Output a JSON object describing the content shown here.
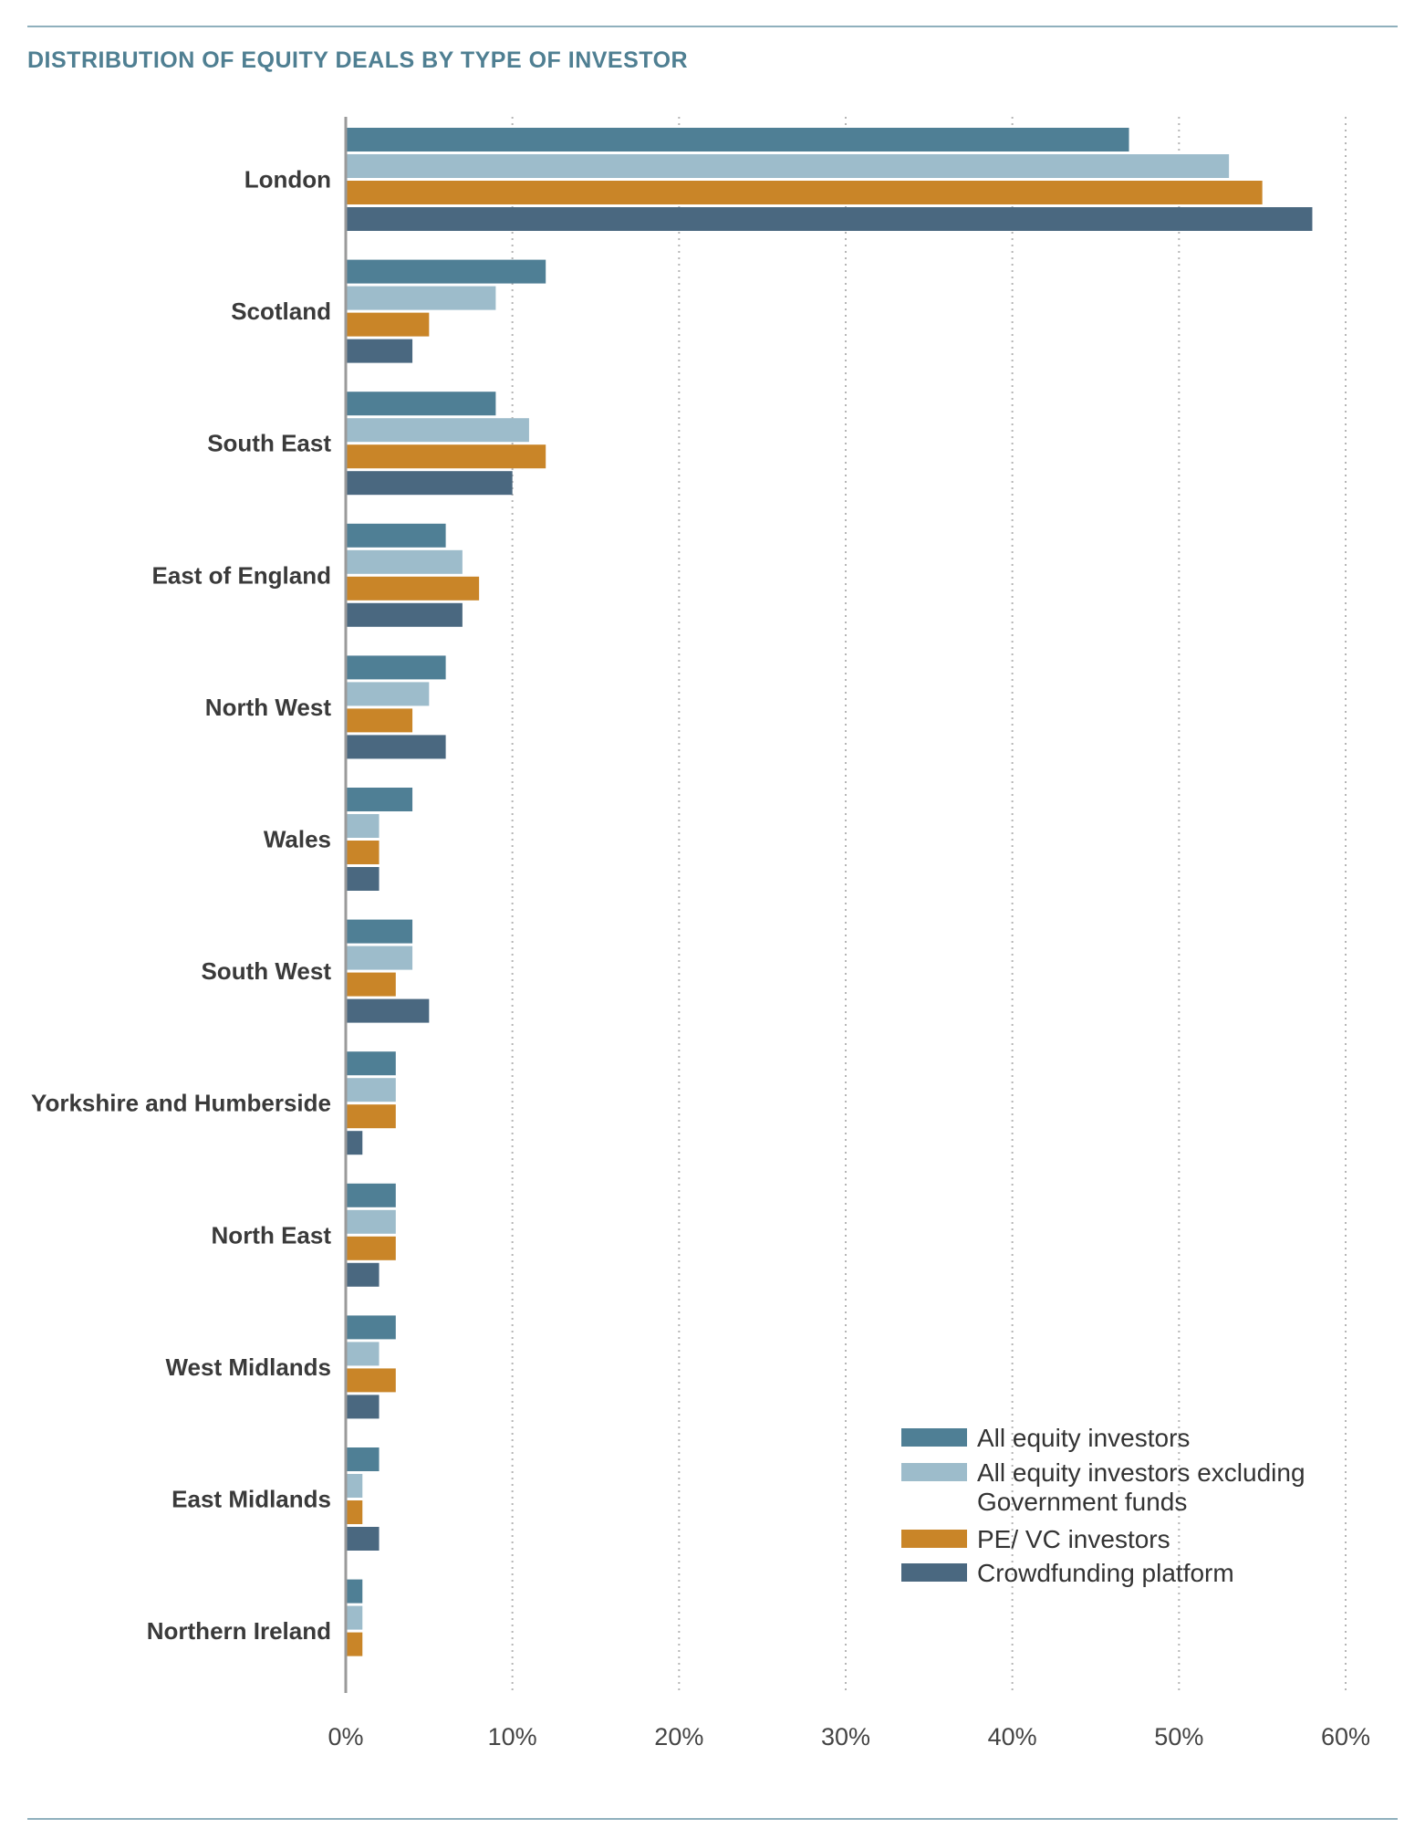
{
  "page": {
    "title": "DISTRIBUTION OF EQUITY DEALS BY TYPE OF INVESTOR"
  },
  "colors": {
    "all_equity": "#4f7f95",
    "excl_gov": "#9dbccb",
    "pe_vc": "#c98528",
    "crowdfunding": "#4a6880",
    "axis": "#9a9a9a",
    "grid": "#b5b5b5",
    "title": "#4f7f92"
  },
  "chart_data": {
    "type": "bar",
    "orientation": "horizontal",
    "title": "DISTRIBUTION OF EQUITY DEALS BY TYPE OF INVESTOR",
    "categories": [
      "London",
      "Scotland",
      "South East",
      "East of England",
      "North West",
      "Wales",
      "South West",
      "Yorkshire and Humberside",
      "North East",
      "West Midlands",
      "East Midlands",
      "Northern Ireland"
    ],
    "series": [
      {
        "name": "All equity investors",
        "color": "#4f7f95",
        "values": [
          47,
          12,
          9,
          6,
          6,
          4,
          4,
          3,
          3,
          3,
          2,
          1
        ]
      },
      {
        "name": "All equity investors excluding Government funds",
        "legend_lines": [
          "All equity investors excluding",
          "Government funds"
        ],
        "color": "#9dbccb",
        "values": [
          53,
          9,
          11,
          7,
          5,
          2,
          4,
          3,
          3,
          2,
          1,
          1
        ]
      },
      {
        "name": "PE/ VC investors",
        "color": "#c98528",
        "values": [
          55,
          5,
          12,
          8,
          4,
          2,
          3,
          3,
          3,
          3,
          1,
          1
        ]
      },
      {
        "name": "Crowdfunding platform",
        "color": "#4a6880",
        "values": [
          58,
          4,
          10,
          7,
          6,
          2,
          5,
          1,
          2,
          2,
          2,
          0
        ]
      }
    ],
    "xlim": [
      0,
      60
    ],
    "xticks": [
      "0%",
      "10%",
      "20%",
      "30%",
      "40%",
      "50%",
      "60%"
    ],
    "grid": "vertical dotted",
    "legend_position": "bottom-right"
  }
}
